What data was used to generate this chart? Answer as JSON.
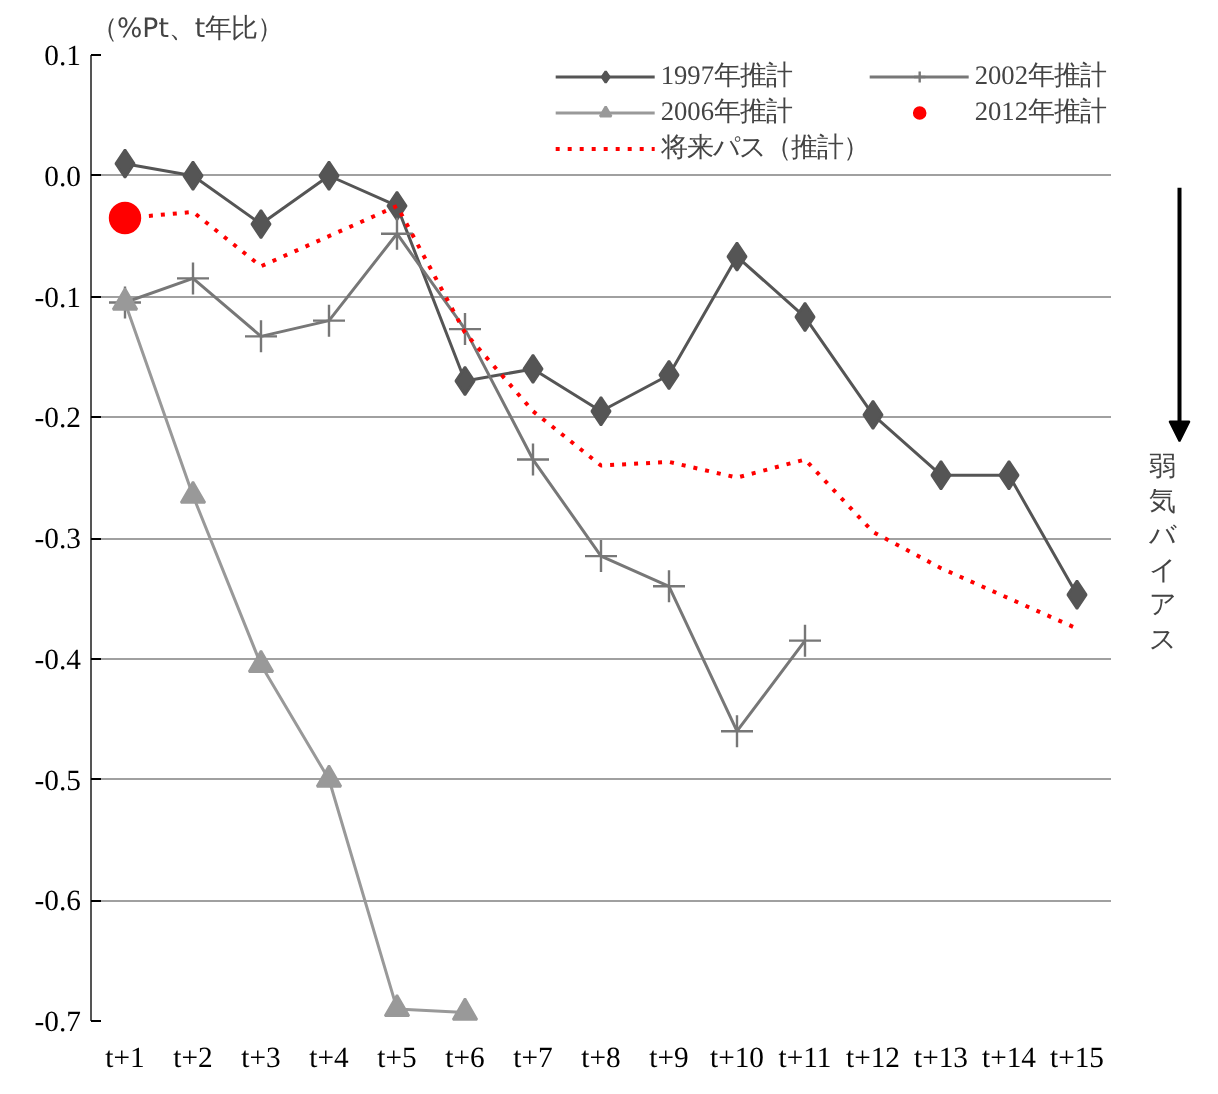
{
  "chart_data": {
    "type": "line",
    "ylabel": "（%Pt、t年比）",
    "categories": [
      "t+1",
      "t+2",
      "t+3",
      "t+4",
      "t+5",
      "t+6",
      "t+7",
      "t+8",
      "t+9",
      "t+10",
      "t+11",
      "t+12",
      "t+13",
      "t+14",
      "t+15"
    ],
    "series": [
      {
        "name": "1997年推計",
        "color": "#555555",
        "marker": "diamond",
        "line_style": "solid",
        "values": [
          0.01,
          0.0,
          -0.04,
          0.0,
          -0.025,
          -0.17,
          -0.16,
          -0.195,
          -0.165,
          -0.067,
          -0.117,
          -0.198,
          -0.248,
          -0.248,
          -0.347
        ]
      },
      {
        "name": "2002年推計",
        "color": "#777777",
        "marker": "cross",
        "line_style": "solid",
        "values": [
          -0.105,
          -0.085,
          -0.133,
          -0.12,
          -0.048,
          -0.127,
          -0.235,
          -0.315,
          -0.34,
          -0.46,
          -0.385,
          null,
          null,
          null,
          null
        ]
      },
      {
        "name": "2006年推計",
        "color": "#999999",
        "marker": "triangle",
        "line_style": "solid",
        "values": [
          -0.105,
          -0.265,
          -0.405,
          -0.5,
          -0.69,
          -0.693,
          null,
          null,
          null,
          null,
          null,
          null,
          null,
          null,
          null
        ]
      },
      {
        "name": "2012年推計",
        "type": "scatter",
        "color": "#ff0000",
        "marker": "circle",
        "values": [
          -0.035,
          null,
          null,
          null,
          null,
          null,
          null,
          null,
          null,
          null,
          null,
          null,
          null,
          null,
          null
        ]
      },
      {
        "name": "将来パス（推計）",
        "color": "#ff0000",
        "marker": "none",
        "line_style": "dotted",
        "values": [
          -0.035,
          -0.03,
          -0.075,
          -0.05,
          -0.025,
          -0.13,
          -0.195,
          -0.24,
          -0.237,
          -0.25,
          -0.235,
          -0.295,
          -0.325,
          -0.35,
          -0.375
        ]
      }
    ],
    "ylim": [
      -0.7,
      0.1
    ],
    "yticks": [
      {
        "value": 0.1,
        "label": "0.1"
      },
      {
        "value": 0.0,
        "label": "0.0"
      },
      {
        "value": -0.1,
        "label": "-0.1"
      },
      {
        "value": -0.2,
        "label": "-0.2"
      },
      {
        "value": -0.3,
        "label": "-0.3"
      },
      {
        "value": -0.4,
        "label": "-0.4"
      },
      {
        "value": -0.5,
        "label": "-0.5"
      },
      {
        "value": -0.6,
        "label": "-0.6"
      },
      {
        "value": -0.7,
        "label": "-0.7"
      }
    ],
    "grid": "y",
    "legend": "top",
    "annotations": [
      "弱気バイアス"
    ]
  }
}
